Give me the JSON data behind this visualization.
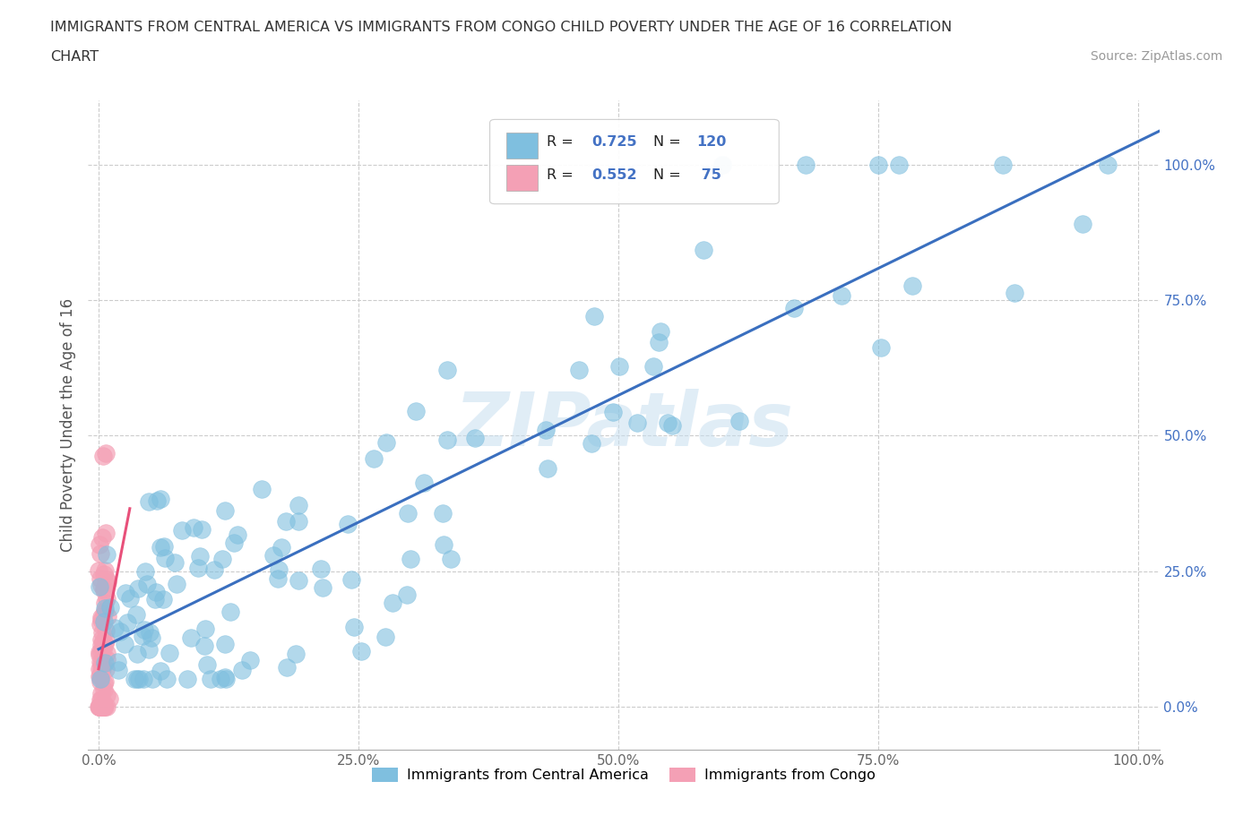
{
  "title_line1": "IMMIGRANTS FROM CENTRAL AMERICA VS IMMIGRANTS FROM CONGO CHILD POVERTY UNDER THE AGE OF 16 CORRELATION",
  "title_line2": "CHART",
  "source": "Source: ZipAtlas.com",
  "ylabel": "Child Poverty Under the Age of 16",
  "xlim": [
    -0.01,
    1.02
  ],
  "ylim": [
    -0.08,
    1.12
  ],
  "xticks": [
    0.0,
    0.25,
    0.5,
    0.75,
    1.0
  ],
  "xtick_labels": [
    "0.0%",
    "25.0%",
    "50.0%",
    "75.0%",
    "100.0%"
  ],
  "ytick_labels": [
    "100.0%",
    "75.0%",
    "50.0%",
    "25.0%",
    "0.0%"
  ],
  "ytick_positions": [
    1.0,
    0.75,
    0.5,
    0.25,
    0.0
  ],
  "series1_name": "Immigrants from Central America",
  "series1_color": "#7fbfdf",
  "series1_line_color": "#3a6fbf",
  "series1_R": 0.725,
  "series1_N": 120,
  "series2_name": "Immigrants from Congo",
  "series2_color": "#f4a0b5",
  "series2_line_color": "#e8507a",
  "series2_R": 0.552,
  "series2_N": 75,
  "legend_R_color": "#4472c4",
  "watermark": "ZIPatlas",
  "background_color": "#ffffff",
  "grid_color": "#cccccc"
}
